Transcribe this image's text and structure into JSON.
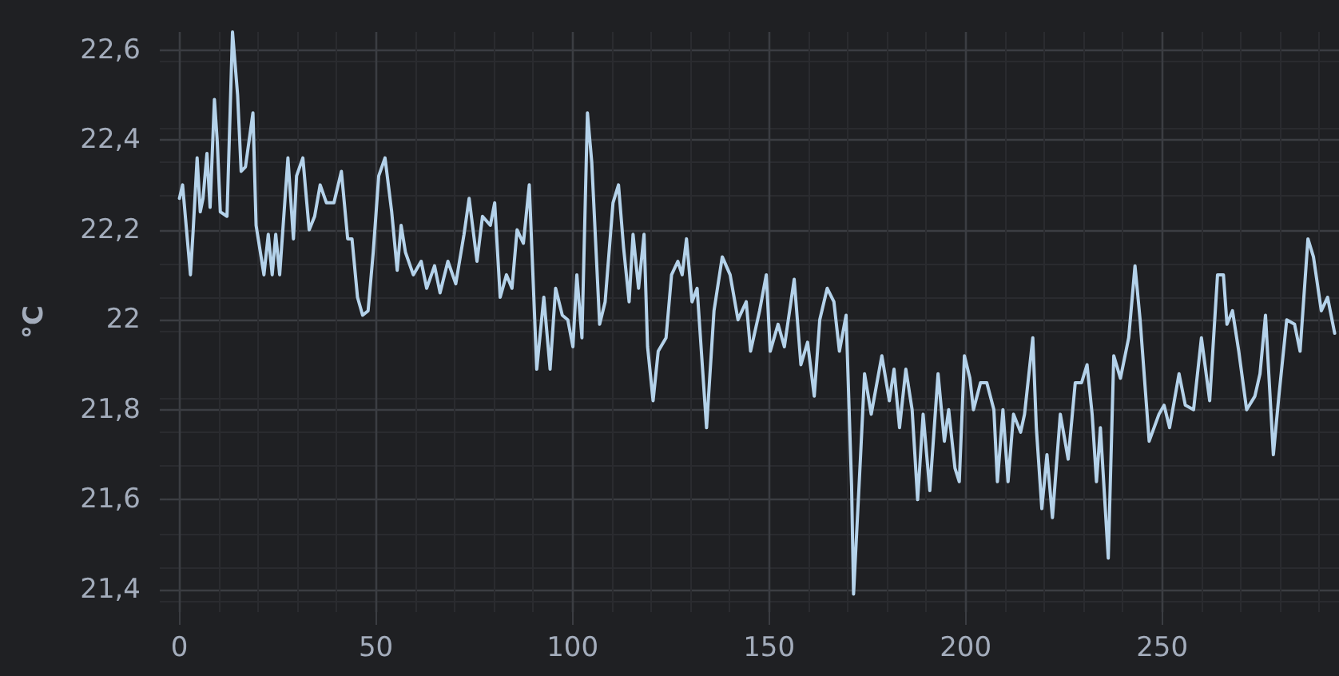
{
  "chart_data": {
    "type": "line",
    "ylabel": "°C",
    "x": [
      0,
      0.8,
      2.8,
      3.5,
      4.5,
      5.3,
      6,
      7,
      7.8,
      8.9,
      9.6,
      10.4,
      12.1,
      13.5,
      14.8,
      15.7,
      16.8,
      18.7,
      19.5,
      21.5,
      22.6,
      23.6,
      24.5,
      25.5,
      27.6,
      29,
      29.8,
      31.4,
      33,
      34.4,
      35.8,
      37.4,
      39.3,
      41.2,
      42.8,
      43.9,
      45.3,
      46.6,
      48,
      49.3,
      50.7,
      52.3,
      54,
      55.4,
      56.4,
      57.5,
      59.5,
      61.5,
      62.9,
      64.9,
      66.3,
      68.3,
      70.3,
      72.4,
      73.7,
      75.7,
      77.1,
      79.1,
      80.2,
      81.6,
      83.2,
      84.6,
      85.9,
      87.5,
      89,
      90.9,
      92.7,
      94.3,
      95.7,
      97.4,
      98.8,
      100.1,
      101.1,
      102.4,
      103.8,
      104.9,
      106.9,
      108.3,
      110.3,
      111.7,
      113,
      114.4,
      115.4,
      116.8,
      118.2,
      119.1,
      120.5,
      121.8,
      123.8,
      125.2,
      126.8,
      127.9,
      129,
      130.4,
      131.7,
      134.1,
      136,
      138.1,
      140.1,
      142.1,
      144.2,
      145.3,
      147.6,
      149.3,
      150.3,
      152.3,
      153.9,
      156.4,
      158.1,
      159.8,
      161.5,
      162.9,
      164.8,
      166.5,
      167.9,
      169.6,
      171,
      171.5,
      173.3,
      174.3,
      176,
      178.7,
      180.6,
      181.8,
      183.2,
      184.8,
      186.4,
      187.8,
      189.2,
      190.9,
      193,
      194.6,
      195.7,
      197.3,
      198.4,
      199.7,
      201.1,
      202,
      203.8,
      205.4,
      207.2,
      208.1,
      209.5,
      210.8,
      212.2,
      214,
      215,
      217.1,
      218,
      219.4,
      220.7,
      222.1,
      224.1,
      226.1,
      227.9,
      229.5,
      230.9,
      232.2,
      233.3,
      234.3,
      236.3,
      237.7,
      239.4,
      241.5,
      243.1,
      244.4,
      246.7,
      249.2,
      250.5,
      251.9,
      254.3,
      255.9,
      258,
      260,
      262.1,
      264.1,
      265.6,
      266.5,
      267.9,
      269.5,
      271.5,
      273.6,
      274.9,
      276.3,
      278.3,
      279.7,
      281.7,
      283.7,
      285.1,
      287.1,
      288.5,
      290.5,
      292.1,
      293.9
    ],
    "series": [
      {
        "color": "#b4d2ea",
        "values": [
          22.27,
          22.3,
          22.1,
          22.2,
          22.36,
          22.24,
          22.27,
          22.37,
          22.25,
          22.49,
          22.4,
          22.24,
          22.23,
          22.64,
          22.5,
          22.33,
          22.34,
          22.46,
          22.21,
          22.1,
          22.19,
          22.1,
          22.19,
          22.1,
          22.36,
          22.18,
          22.32,
          22.36,
          22.2,
          22.23,
          22.3,
          22.26,
          22.26,
          22.33,
          22.18,
          22.18,
          22.05,
          22.01,
          22.02,
          22.15,
          22.32,
          22.36,
          22.24,
          22.11,
          22.21,
          22.15,
          22.1,
          22.13,
          22.07,
          22.12,
          22.06,
          22.13,
          22.08,
          22.19,
          22.27,
          22.13,
          22.23,
          22.21,
          22.26,
          22.05,
          22.1,
          22.07,
          22.2,
          22.17,
          22.3,
          21.89,
          22.05,
          21.89,
          22.07,
          22.01,
          22,
          21.94,
          22.1,
          21.96,
          22.46,
          22.35,
          21.99,
          22.04,
          22.26,
          22.3,
          22.16,
          22.04,
          22.19,
          22.07,
          22.19,
          21.94,
          21.82,
          21.93,
          21.96,
          22.1,
          22.13,
          22.1,
          22.18,
          22.04,
          22.07,
          21.76,
          22.02,
          22.14,
          22.1,
          22,
          22.04,
          21.93,
          22.02,
          22.1,
          21.93,
          21.99,
          21.94,
          22.09,
          21.9,
          21.95,
          21.83,
          22,
          22.07,
          22.04,
          21.93,
          22.01,
          21.63,
          21.39,
          21.7,
          21.88,
          21.79,
          21.92,
          21.82,
          21.89,
          21.76,
          21.89,
          21.8,
          21.6,
          21.79,
          21.62,
          21.88,
          21.73,
          21.8,
          21.67,
          21.64,
          21.92,
          21.87,
          21.8,
          21.86,
          21.86,
          21.8,
          21.64,
          21.8,
          21.64,
          21.79,
          21.75,
          21.79,
          21.96,
          21.76,
          21.58,
          21.7,
          21.56,
          21.79,
          21.69,
          21.86,
          21.86,
          21.9,
          21.79,
          21.64,
          21.76,
          21.47,
          21.92,
          21.87,
          21.96,
          22.12,
          22,
          21.73,
          21.79,
          21.81,
          21.76,
          21.88,
          21.81,
          21.8,
          21.96,
          21.82,
          22.1,
          22.1,
          21.99,
          22.02,
          21.93,
          21.8,
          21.83,
          21.88,
          22.01,
          21.7,
          21.83,
          22,
          21.99,
          21.93,
          22.18,
          22.14,
          22.02,
          22.05,
          21.97
        ]
      }
    ],
    "xlim": [
      -5,
      295
    ],
    "xticks": [
      0,
      50,
      100,
      150,
      200,
      250
    ],
    "ylim": [
      21.35,
      22.64
    ],
    "yticks": [
      {
        "value": 21.4,
        "label": "21,4"
      },
      {
        "value": 21.6,
        "label": "21,6"
      },
      {
        "value": 21.8,
        "label": "21,8"
      },
      22,
      {
        "value": 22.2,
        "label": "22,2"
      },
      {
        "value": 22.4,
        "label": "22,4"
      },
      {
        "value": 22.6,
        "label": "22,6"
      }
    ],
    "grid": true,
    "marker": "none",
    "line_style": "solid"
  }
}
